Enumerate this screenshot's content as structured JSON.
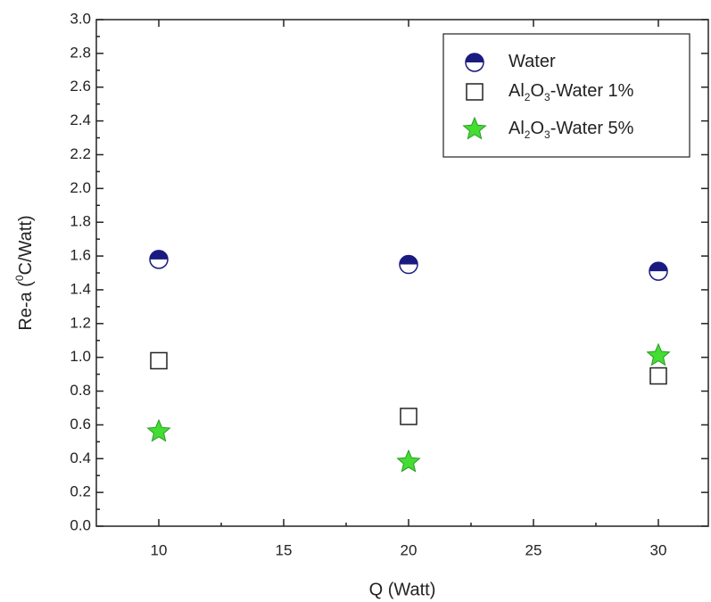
{
  "chart_data": {
    "type": "scatter",
    "x_label": "Q (Watt)",
    "y_label": "Re-a (0C/Watt)",
    "x": [
      10,
      20,
      30
    ],
    "series": [
      {
        "name": "Water",
        "color": "#1a1a80",
        "marker": "half-circle",
        "values": [
          1.58,
          1.55,
          1.51
        ]
      },
      {
        "name": "Al2O3-Water 1%",
        "color": "#222222",
        "marker": "open-square",
        "values": [
          0.98,
          0.65,
          0.89
        ]
      },
      {
        "name": "Al2O3-Water 5%",
        "color": "#44dd33",
        "marker": "star",
        "values": [
          0.56,
          0.38,
          1.01
        ]
      }
    ],
    "xlim": [
      7.5,
      32
    ],
    "xticks": [
      10,
      15,
      20,
      25,
      30
    ],
    "ylim": [
      0,
      3
    ],
    "yticks": [
      {
        "value": 0,
        "label": "0.0"
      },
      0.2,
      0.4,
      0.6,
      0.8,
      {
        "value": 1,
        "label": "1.0"
      },
      1.2,
      1.4,
      1.6,
      1.8,
      {
        "value": 2,
        "label": "2.0"
      },
      2.2,
      2.4,
      2.6,
      2.8,
      {
        "value": 3,
        "label": "3.0"
      }
    ],
    "grid": false,
    "legend": "upper right"
  }
}
